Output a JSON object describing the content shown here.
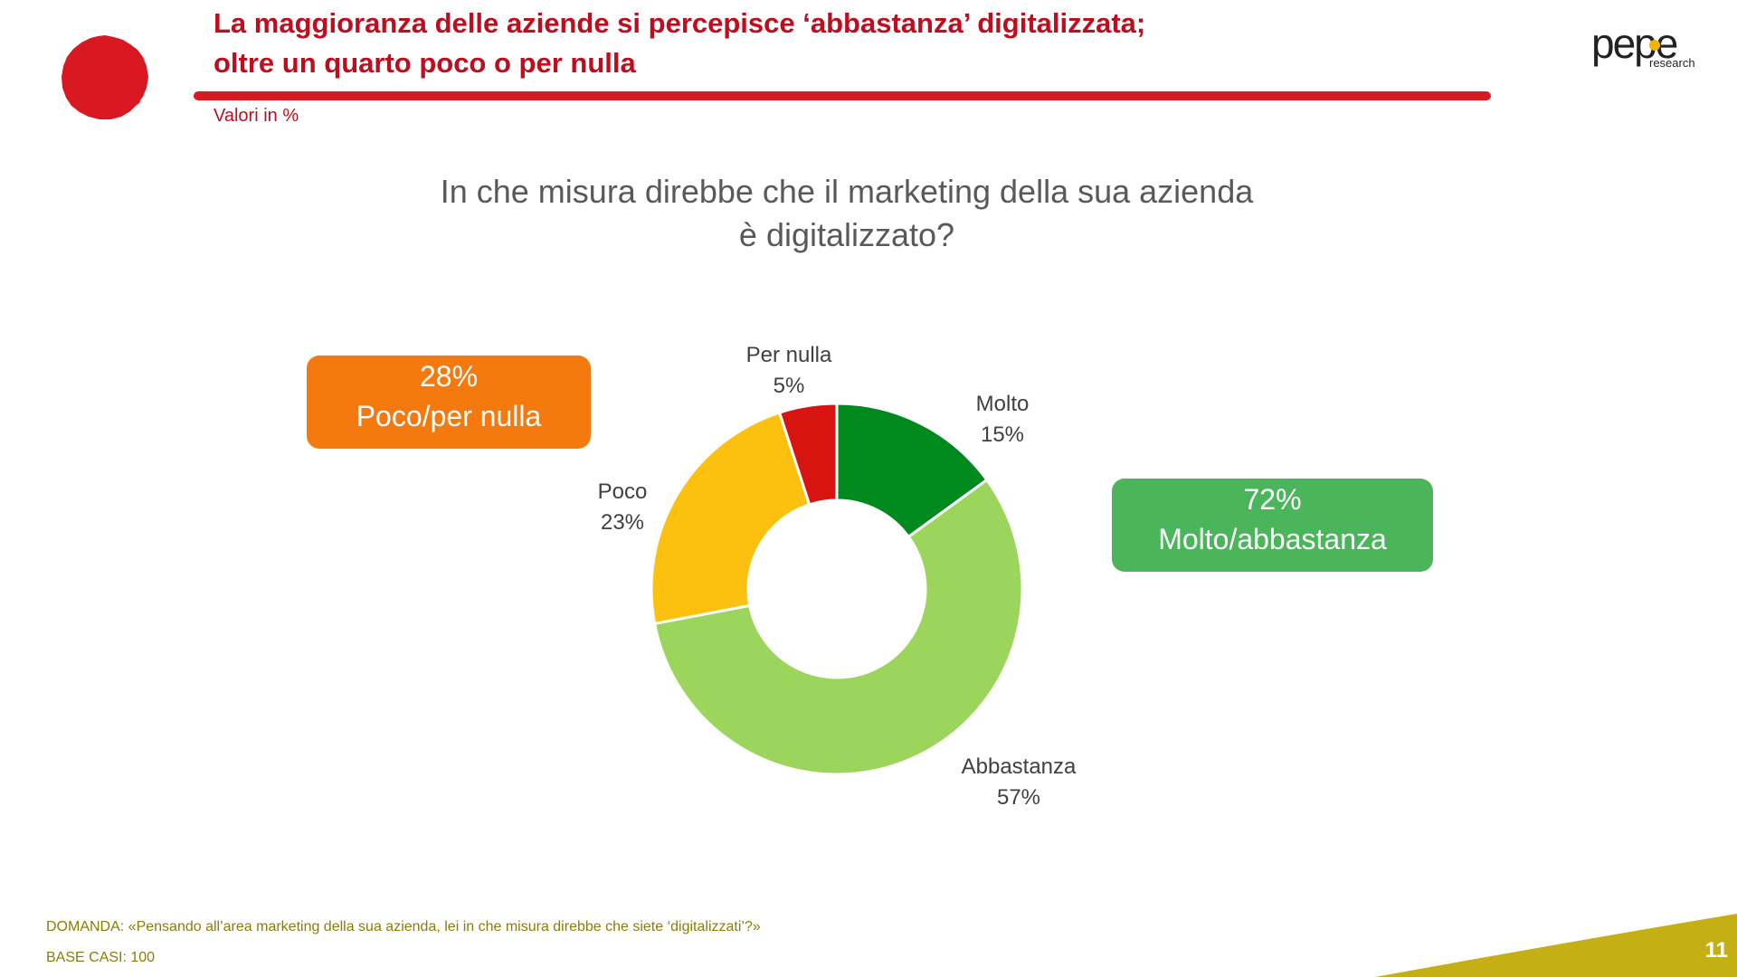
{
  "header": {
    "title_line1": "La maggioranza delle aziende si percepisce ‘abbastanza’ digitalizzata;",
    "title_line2": "oltre un quarto poco o per nulla",
    "subtitle": "Valori in %",
    "logo_text": "pepe",
    "logo_subtext": "research",
    "accent_color": "#c00d1e"
  },
  "chart_data": {
    "type": "pie",
    "donut": true,
    "title_line1": "In che misura direbbe che il marketing della sua azienda",
    "title_line2": "è digitalizzato?",
    "slices": [
      {
        "label": "Molto",
        "value": 15,
        "display": "15%",
        "color": "#008a1e"
      },
      {
        "label": "Abbastanza",
        "value": 57,
        "display": "57%",
        "color": "#9bd55c"
      },
      {
        "label": "Poco",
        "value": 23,
        "display": "23%",
        "color": "#fcc10f"
      },
      {
        "label": "Per nulla",
        "value": 5,
        "display": "5%",
        "color": "#d7140f"
      }
    ],
    "summary_boxes": [
      {
        "value": "28%",
        "label": "Poco/per nulla",
        "color": "#f47a0f"
      },
      {
        "value": "72%",
        "label": "Molto/abbastanza",
        "color": "#4ab55a"
      }
    ]
  },
  "footer": {
    "question": "DOMANDA: «Pensando all’area marketing della sua azienda, lei in che misura direbbe che siete ‘digitalizzati’?»",
    "base": "BASE CASI: 100",
    "page_number": "11",
    "corner_color": "#c4b014"
  }
}
